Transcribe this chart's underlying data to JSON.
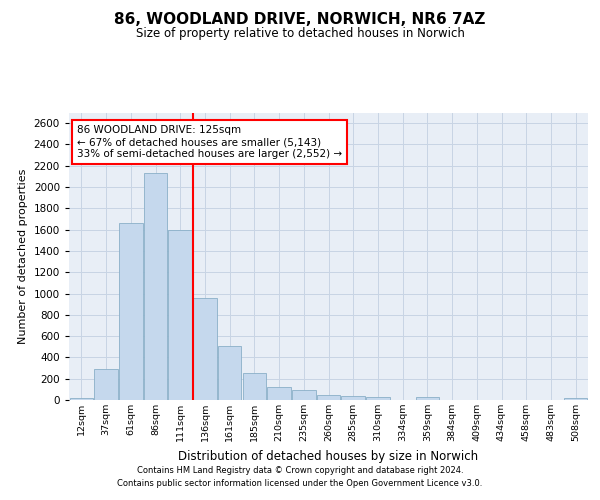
{
  "title_line1": "86, WOODLAND DRIVE, NORWICH, NR6 7AZ",
  "title_line2": "Size of property relative to detached houses in Norwich",
  "xlabel": "Distribution of detached houses by size in Norwich",
  "ylabel": "Number of detached properties",
  "bar_labels": [
    "12sqm",
    "37sqm",
    "61sqm",
    "86sqm",
    "111sqm",
    "136sqm",
    "161sqm",
    "185sqm",
    "210sqm",
    "235sqm",
    "260sqm",
    "285sqm",
    "310sqm",
    "334sqm",
    "359sqm",
    "384sqm",
    "409sqm",
    "434sqm",
    "458sqm",
    "483sqm",
    "508sqm"
  ],
  "bar_values": [
    20,
    295,
    1660,
    2130,
    1595,
    960,
    505,
    250,
    120,
    95,
    50,
    40,
    25,
    0,
    25,
    0,
    0,
    0,
    0,
    0,
    20
  ],
  "bar_color": "#c5d8ed",
  "bar_edge_color": "#8aafc8",
  "vline_x": 4.5,
  "vline_color": "red",
  "annotation_text": "86 WOODLAND DRIVE: 125sqm\n← 67% of detached houses are smaller (5,143)\n33% of semi-detached houses are larger (2,552) →",
  "annotation_box_color": "white",
  "annotation_box_edge": "red",
  "ylim": [
    0,
    2700
  ],
  "yticks": [
    0,
    200,
    400,
    600,
    800,
    1000,
    1200,
    1400,
    1600,
    1800,
    2000,
    2200,
    2400,
    2600
  ],
  "footer_line1": "Contains HM Land Registry data © Crown copyright and database right 2024.",
  "footer_line2": "Contains public sector information licensed under the Open Government Licence v3.0.",
  "grid_color": "#c8d4e4",
  "background_color": "#e8eef6",
  "fig_width": 6.0,
  "fig_height": 5.0,
  "dpi": 100
}
